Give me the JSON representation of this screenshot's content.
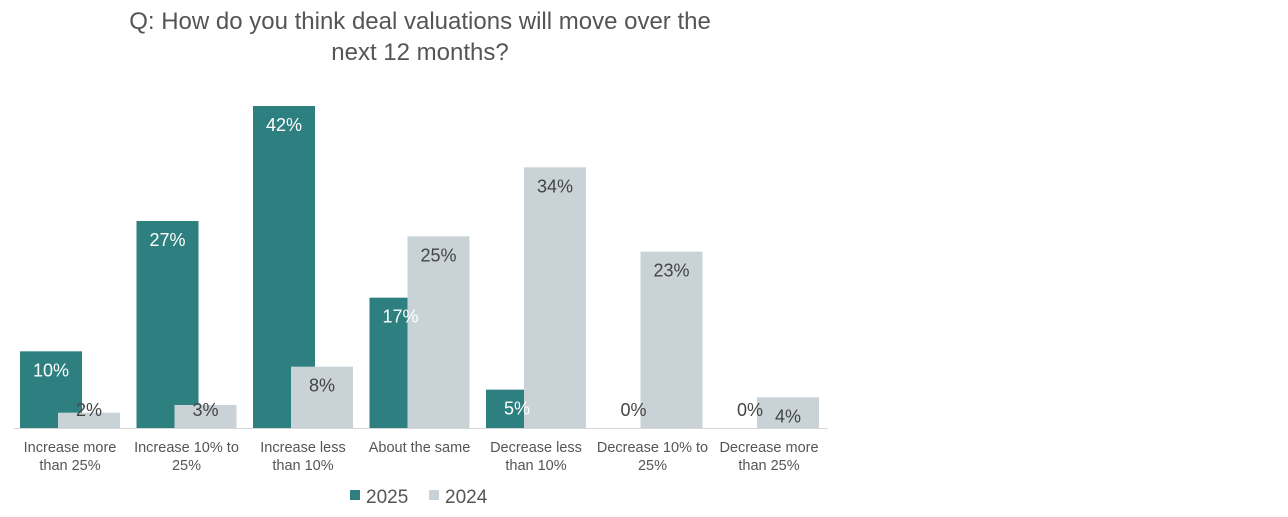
{
  "chart_data": {
    "type": "bar",
    "title_lines": [
      "Q: How do you think deal valuations will move over the",
      "next 12 months?"
    ],
    "categories": [
      [
        "Increase more",
        "than 25%"
      ],
      [
        "Increase 10% to",
        "25%"
      ],
      [
        "Increase less",
        "than 10%"
      ],
      [
        "About the same"
      ],
      [
        "Decrease less",
        "than 10%"
      ],
      [
        "Decrease 10% to",
        "25%"
      ],
      [
        "Decrease more",
        "than 25%"
      ]
    ],
    "series": [
      {
        "name": "2025",
        "color": "#2e8080",
        "label_color": "#ffffff",
        "values": [
          10,
          27,
          42,
          17,
          5,
          0,
          0
        ],
        "labels": [
          "10%",
          "27%",
          "42%",
          "17%",
          "5%",
          "0%",
          "0%"
        ]
      },
      {
        "name": "2024",
        "color": "#c8d2d7",
        "label_color": "#444444",
        "values": [
          2,
          3,
          8,
          25,
          34,
          23,
          4
        ],
        "labels": [
          "2%",
          "3%",
          "8%",
          "25%",
          "34%",
          "23%",
          "4%"
        ]
      }
    ],
    "ylim": [
      0,
      42
    ],
    "grid": false,
    "legend_position": "bottom-center"
  }
}
